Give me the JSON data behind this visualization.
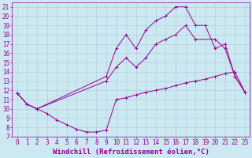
{
  "xlabel": "Windchill (Refroidissement éolien,°C)",
  "bg_color": "#cce8f0",
  "line_color": "#990099",
  "xlim": [
    -0.5,
    23.5
  ],
  "ylim": [
    7,
    21.5
  ],
  "xticks": [
    0,
    1,
    2,
    3,
    4,
    5,
    6,
    7,
    8,
    9,
    10,
    11,
    12,
    13,
    14,
    15,
    16,
    17,
    18,
    19,
    20,
    21,
    22,
    23
  ],
  "yticks": [
    7,
    8,
    9,
    10,
    11,
    12,
    13,
    14,
    15,
    16,
    17,
    18,
    19,
    20,
    21
  ],
  "curve_top": [
    [
      0,
      11.7
    ],
    [
      1,
      10.5
    ],
    [
      2,
      10.0
    ],
    [
      9,
      13.5
    ],
    [
      10,
      16.5
    ],
    [
      11,
      18.0
    ],
    [
      12,
      16.5
    ],
    [
      13,
      18.5
    ],
    [
      14,
      19.5
    ],
    [
      15,
      20.0
    ],
    [
      16,
      21.0
    ],
    [
      17,
      21.0
    ],
    [
      18,
      19.0
    ],
    [
      19,
      19.0
    ],
    [
      20,
      16.5
    ],
    [
      21,
      17.0
    ],
    [
      22,
      13.5
    ],
    [
      23,
      11.8
    ]
  ],
  "curve_mid": [
    [
      0,
      11.7
    ],
    [
      1,
      10.5
    ],
    [
      2,
      10.0
    ],
    [
      9,
      13.0
    ],
    [
      10,
      14.5
    ],
    [
      11,
      15.5
    ],
    [
      12,
      14.5
    ],
    [
      13,
      15.5
    ],
    [
      14,
      17.0
    ],
    [
      15,
      17.5
    ],
    [
      16,
      18.0
    ],
    [
      17,
      19.0
    ],
    [
      18,
      17.5
    ],
    [
      20,
      17.5
    ],
    [
      21,
      16.5
    ],
    [
      22,
      13.5
    ],
    [
      23,
      11.8
    ]
  ],
  "curve_bot": [
    [
      0,
      11.7
    ],
    [
      1,
      10.5
    ],
    [
      2,
      10.0
    ],
    [
      3,
      9.5
    ],
    [
      4,
      8.8
    ],
    [
      5,
      8.3
    ],
    [
      6,
      7.8
    ],
    [
      7,
      7.5
    ],
    [
      8,
      7.5
    ],
    [
      9,
      7.7
    ],
    [
      10,
      11.0
    ],
    [
      11,
      11.2
    ],
    [
      12,
      11.5
    ],
    [
      13,
      11.8
    ],
    [
      14,
      12.0
    ],
    [
      15,
      12.2
    ],
    [
      16,
      12.5
    ],
    [
      17,
      12.8
    ],
    [
      18,
      13.0
    ],
    [
      19,
      13.2
    ],
    [
      20,
      13.5
    ],
    [
      21,
      13.8
    ],
    [
      22,
      14.0
    ],
    [
      23,
      11.8
    ]
  ],
  "grid_color": "#aac8d8",
  "tick_fontsize": 5.5,
  "xlabel_fontsize": 6.5
}
